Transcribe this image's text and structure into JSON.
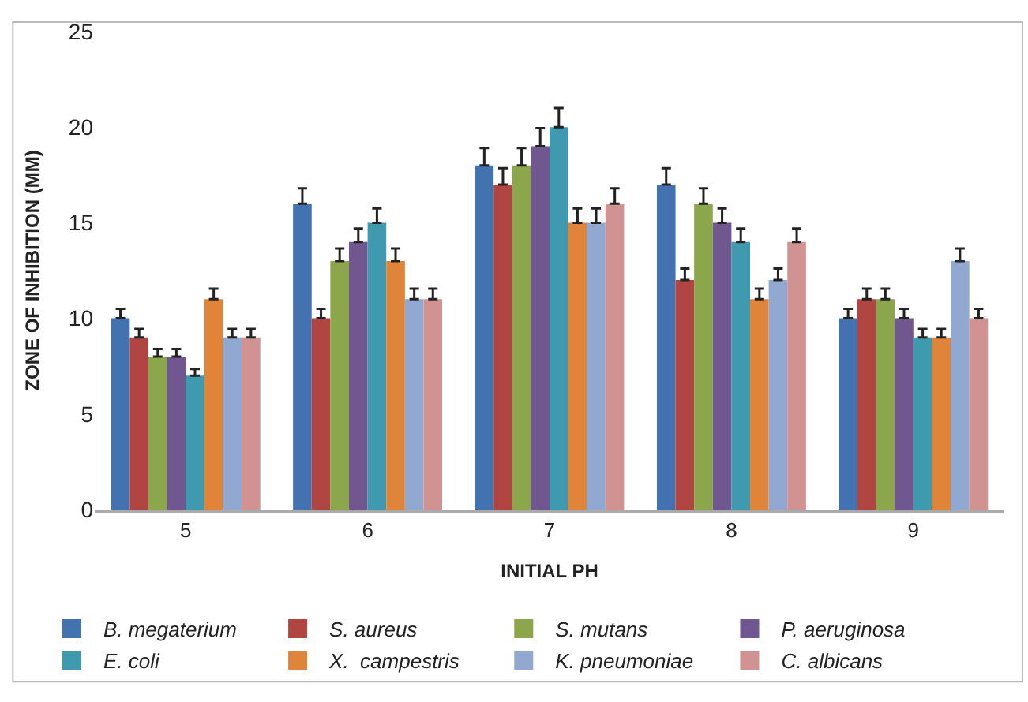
{
  "chart_data": {
    "type": "bar",
    "xlabel": "INITIAL PH",
    "ylabel": "ZONE OF INHIBITION (MM)",
    "categories": [
      "5",
      "6",
      "7",
      "8",
      "9"
    ],
    "ylim": [
      0,
      25
    ],
    "yticks": [
      0,
      5,
      10,
      15,
      20,
      25
    ],
    "legend": "bottom",
    "series": [
      {
        "name": "B. megaterium",
        "color": "#4372b0",
        "values": [
          10,
          16,
          18,
          17,
          10
        ],
        "errors": [
          [
            10,
            10.5
          ],
          [
            16,
            16.8
          ],
          [
            18,
            18.9
          ],
          [
            17,
            17.85
          ],
          [
            10,
            10.5
          ]
        ]
      },
      {
        "name": "S. aureus",
        "color": "#b04542",
        "values": [
          9,
          10,
          17,
          12,
          11
        ],
        "errors": [
          [
            9,
            9.45
          ],
          [
            10,
            10.5
          ],
          [
            17,
            17.85
          ],
          [
            12,
            12.6
          ],
          [
            11,
            11.55
          ]
        ]
      },
      {
        "name": "S. mutans",
        "color": "#8ba64b",
        "values": [
          8,
          13,
          18,
          16,
          11
        ],
        "errors": [
          [
            8,
            8.4
          ],
          [
            13,
            13.65
          ],
          [
            18,
            18.9
          ],
          [
            16,
            16.8
          ],
          [
            11,
            11.55
          ]
        ]
      },
      {
        "name": "P. aeruginosa",
        "color": "#71578f",
        "values": [
          8,
          14,
          19,
          15,
          10
        ],
        "errors": [
          [
            8,
            8.4
          ],
          [
            14,
            14.7
          ],
          [
            19,
            19.95
          ],
          [
            15,
            15.75
          ],
          [
            10,
            10.5
          ]
        ]
      },
      {
        "name": "E. coli",
        "color": "#3f9ab0",
        "values": [
          7,
          15,
          20,
          14,
          9
        ],
        "errors": [
          [
            7,
            7.35
          ],
          [
            15,
            15.75
          ],
          [
            20,
            21
          ],
          [
            14,
            14.7
          ],
          [
            9,
            9.45
          ]
        ]
      },
      {
        "name": "X.  campestris",
        "color": "#e0843a",
        "values": [
          11,
          13,
          15,
          11,
          9
        ],
        "errors": [
          [
            11,
            11.55
          ],
          [
            13,
            13.65
          ],
          [
            15,
            15.75
          ],
          [
            11,
            11.55
          ],
          [
            9,
            9.45
          ]
        ]
      },
      {
        "name": "K. pneumoniae",
        "color": "#91a8d0",
        "values": [
          9,
          11,
          15,
          12,
          13
        ],
        "errors": [
          [
            9,
            9.45
          ],
          [
            11,
            11.55
          ],
          [
            15,
            15.75
          ],
          [
            12,
            12.6
          ],
          [
            13,
            13.65
          ]
        ]
      },
      {
        "name": "C. albicans",
        "color": "#d19392",
        "values": [
          9,
          11,
          16,
          14,
          10
        ],
        "errors": [
          [
            9,
            9.45
          ],
          [
            11,
            11.55
          ],
          [
            16,
            16.8
          ],
          [
            14,
            14.7
          ],
          [
            10,
            10.5
          ]
        ]
      }
    ]
  }
}
